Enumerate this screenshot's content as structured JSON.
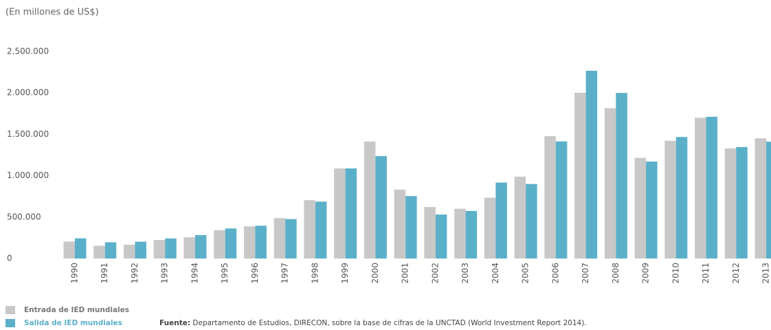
{
  "chart_data": {
    "type": "bar",
    "subtitle": "(En millones de US$)",
    "categories": [
      "1990",
      "1991",
      "1992",
      "1993",
      "1994",
      "1995",
      "1996",
      "1997",
      "1998",
      "1999",
      "2000",
      "2001",
      "2002",
      "2003",
      "2004",
      "2005",
      "2006",
      "2007",
      "2008",
      "2009",
      "2010",
      "2011",
      "2012",
      "2013"
    ],
    "series": [
      {
        "name": "Entrada de IED mundiales",
        "color": "#c8c8c8",
        "values": [
          205000,
          154000,
          166000,
          223000,
          256000,
          342000,
          388000,
          488000,
          705000,
          1088000,
          1413000,
          832000,
          622000,
          601000,
          735000,
          989000,
          1478000,
          2002000,
          1816000,
          1216000,
          1422000,
          1700000,
          1330000,
          1452000
        ]
      },
      {
        "name": "Salida de IED mundiales",
        "color": "#5bb0c9",
        "values": [
          244000,
          196000,
          203000,
          242000,
          283000,
          363000,
          396000,
          476000,
          687000,
          1088000,
          1237000,
          754000,
          531000,
          574000,
          917000,
          900000,
          1415000,
          2268000,
          2000000,
          1171000,
          1468000,
          1712000,
          1347000,
          1411000
        ]
      }
    ],
    "ylim": [
      0,
      2500000
    ],
    "yticks": [
      0,
      {
        "value": 500000,
        "label": "500.000"
      },
      {
        "value": 1000000,
        "label": "1.000.000"
      },
      {
        "value": 1500000,
        "label": "1.500.000"
      },
      {
        "value": 2000000,
        "label": "2.000.000"
      },
      {
        "value": 2500000,
        "label": "2.500.000"
      }
    ],
    "grid": false,
    "source": {
      "label": "Fuente:",
      "text": " Departamento de Estudios, DIRECON, sobre la base de cifras de la UNCTAD (World Investment Report 2014)."
    }
  }
}
